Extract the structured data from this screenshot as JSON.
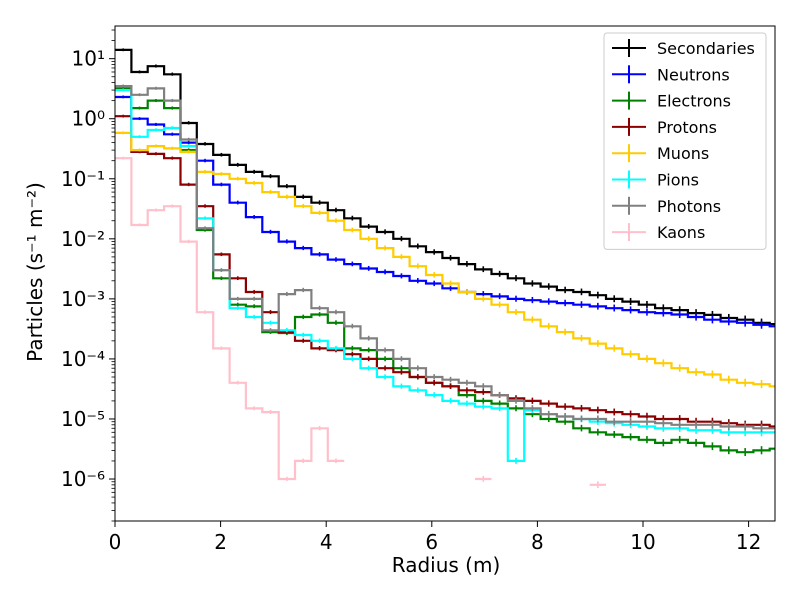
{
  "chart_data": {
    "type": "line",
    "xlabel": "Radius (m)",
    "ylabel": "Particles (s⁻¹ m⁻²)",
    "xlim": [
      0,
      12.5
    ],
    "ylim": [
      2e-07,
      35
    ],
    "yscale": "log",
    "grid": false,
    "legend_position": "top-right",
    "x_ticks": [
      0,
      2,
      4,
      6,
      8,
      10,
      12
    ],
    "x_tick_labels": [
      "0",
      "2",
      "4",
      "6",
      "8",
      "10",
      "12"
    ],
    "y_ticks": [
      1e-06,
      1e-05,
      0.0001,
      0.001,
      0.01,
      0.1,
      1,
      10
    ],
    "y_tick_labels": [
      "10⁻⁶",
      "10⁻⁵",
      "10⁻⁴",
      "10⁻³",
      "10⁻²",
      "10⁻¹",
      "10⁰",
      "10¹"
    ],
    "x": [
      0,
      0.31,
      0.62,
      0.93,
      1.24,
      1.55,
      1.86,
      2.17,
      2.48,
      2.79,
      3.1,
      3.41,
      3.72,
      4.03,
      4.34,
      4.65,
      4.96,
      5.27,
      5.58,
      5.89,
      6.2,
      6.51,
      6.82,
      7.13,
      7.44,
      7.75,
      8.06,
      8.37,
      8.68,
      8.99,
      9.3,
      9.61,
      9.92,
      10.23,
      10.54,
      10.85,
      11.16,
      11.47,
      11.78,
      12.09,
      12.4
    ],
    "series": [
      {
        "name": "Secondaries",
        "color": "#000000",
        "values": [
          14,
          6,
          7.5,
          5.5,
          0.85,
          0.38,
          0.25,
          0.17,
          0.13,
          0.11,
          0.075,
          0.05,
          0.04,
          0.03,
          0.022,
          0.016,
          0.013,
          0.01,
          0.0075,
          0.006,
          0.0048,
          0.0038,
          0.0031,
          0.0026,
          0.0022,
          0.0018,
          0.0016,
          0.0014,
          0.0013,
          0.00115,
          0.001,
          0.0009,
          0.0008,
          0.0007,
          0.00065,
          0.00058,
          0.00054,
          0.00048,
          0.00045,
          0.0004,
          0.00038
        ]
      },
      {
        "name": "Neutrons",
        "color": "#0000ff",
        "values": [
          2.3,
          1.0,
          0.8,
          0.55,
          0.4,
          0.2,
          0.08,
          0.04,
          0.023,
          0.013,
          0.009,
          0.007,
          0.0055,
          0.0045,
          0.0038,
          0.0032,
          0.0028,
          0.0024,
          0.002,
          0.0018,
          0.0015,
          0.0013,
          0.0012,
          0.0011,
          0.001,
          0.00095,
          0.0009,
          0.00085,
          0.0008,
          0.00075,
          0.0007,
          0.00065,
          0.0006,
          0.00058,
          0.00055,
          0.0005,
          0.00045,
          0.00042,
          0.0004,
          0.00037,
          0.00035
        ]
      },
      {
        "name": "Electrons",
        "color": "#008000",
        "values": [
          3.2,
          1.5,
          2.0,
          1.5,
          0.3,
          0.014,
          0.0022,
          0.0008,
          0.00075,
          0.00028,
          0.00027,
          0.0005,
          0.00055,
          0.0004,
          0.00015,
          0.00014,
          0.0001,
          7e-05,
          5e-05,
          4e-05,
          3.5e-05,
          2.5e-05,
          2e-05,
          1.8e-05,
          1.5e-05,
          1.2e-05,
          1e-05,
          9e-06,
          7e-06,
          6e-06,
          5.5e-06,
          5e-06,
          4.5e-06,
          4e-06,
          4.5e-06,
          4e-06,
          3.5e-06,
          3e-06,
          2.8e-06,
          3e-06,
          3.2e-06
        ]
      },
      {
        "name": "Protons",
        "color": "#8b0000",
        "values": [
          1.1,
          0.28,
          0.26,
          0.22,
          0.08,
          0.035,
          0.0055,
          0.0022,
          0.0013,
          0.0006,
          0.00028,
          0.0002,
          0.00015,
          0.00014,
          0.00012,
          0.0001,
          7e-05,
          6e-05,
          5e-05,
          4e-05,
          3.5e-05,
          3e-05,
          2.8e-05,
          2.5e-05,
          2.2e-05,
          2e-05,
          1.8e-05,
          1.6e-05,
          1.5e-05,
          1.4e-05,
          1.3e-05,
          1.2e-05,
          1.1e-05,
          1e-05,
          1e-05,
          9e-06,
          9e-06,
          8.5e-06,
          8e-06,
          8e-06,
          7.5e-06
        ]
      },
      {
        "name": "Muons",
        "color": "#ffcc00",
        "values": [
          0.58,
          0.3,
          0.35,
          0.32,
          0.28,
          0.13,
          0.12,
          0.1,
          0.085,
          0.06,
          0.05,
          0.035,
          0.027,
          0.02,
          0.014,
          0.01,
          0.007,
          0.005,
          0.0035,
          0.0025,
          0.0018,
          0.0013,
          0.001,
          0.0008,
          0.0006,
          0.00045,
          0.00035,
          0.00028,
          0.00022,
          0.00018,
          0.00015,
          0.00012,
          0.0001,
          8.5e-05,
          7e-05,
          6e-05,
          5.5e-05,
          4.5e-05,
          4e-05,
          3.8e-05,
          3.5e-05
        ]
      },
      {
        "name": "Pions",
        "color": "#00ffff",
        "values": [
          3.0,
          0.5,
          0.65,
          0.7,
          0.35,
          0.022,
          0.003,
          0.0007,
          0.0005,
          0.0004,
          0.0003,
          0.00025,
          0.0002,
          0.00015,
          0.0001,
          7e-05,
          5e-05,
          3.5e-05,
          3e-05,
          2.5e-05,
          2e-05,
          1.8e-05,
          1.6e-05,
          1.5e-05,
          2e-06,
          1.4e-05,
          1.2e-05,
          1.1e-05,
          1e-05,
          9e-06,
          8.5e-06,
          8e-06,
          7.5e-06,
          7e-06,
          7e-06,
          6.5e-06,
          6.5e-06,
          6e-06,
          6e-06,
          6e-06,
          6e-06
        ]
      },
      {
        "name": "Photons",
        "color": "#808080",
        "values": [
          3.5,
          2.5,
          3.2,
          2.0,
          0.45,
          0.015,
          0.003,
          0.001,
          0.001,
          0.0003,
          0.0012,
          0.0014,
          0.0007,
          0.0006,
          0.00035,
          0.00022,
          0.00014,
          0.0001,
          7e-05,
          5e-05,
          4.5e-05,
          4e-05,
          3.5e-05,
          2.5e-05,
          2e-05,
          1.5e-05,
          1.2e-05,
          1.1e-05,
          1e-05,
          1e-05,
          9e-06,
          9e-06,
          9e-06,
          8.5e-06,
          8e-06,
          8e-06,
          8e-06,
          7.5e-06,
          7.5e-06,
          7e-06,
          7e-06
        ]
      },
      {
        "name": "Kaons",
        "color": "#ffc0cb",
        "values": [
          0.22,
          0.017,
          0.03,
          0.035,
          0.009,
          0.0006,
          0.00015,
          4e-05,
          1.5e-05,
          1.3e-05,
          1e-06,
          2e-06,
          7e-06,
          2e-06,
          null,
          null,
          null,
          null,
          null,
          null,
          null,
          null,
          1e-06,
          null,
          null,
          null,
          null,
          null,
          null,
          8e-07,
          null,
          null,
          null,
          null,
          null,
          null,
          null,
          null,
          null,
          null,
          null
        ]
      }
    ]
  }
}
